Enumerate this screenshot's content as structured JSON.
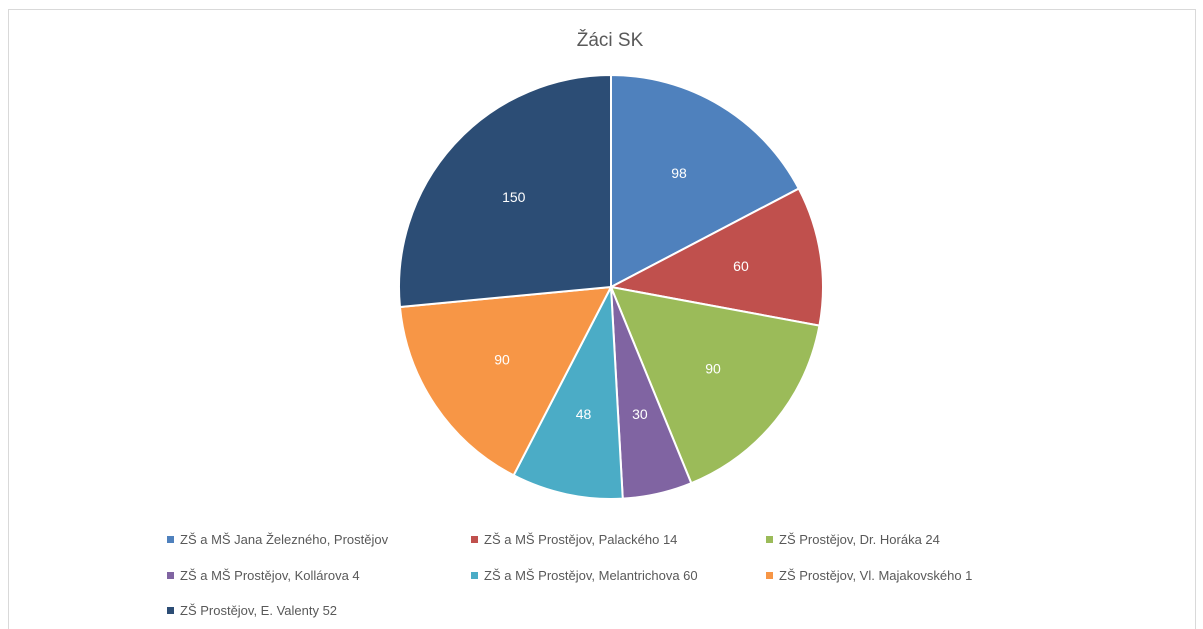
{
  "chart_data": {
    "type": "pie",
    "title": "Žáci SK",
    "categories": [
      "ZŠ a MŠ Jana Železného, Prostějov",
      "ZŠ a MŠ Prostějov, Palackého 14",
      "ZŠ Prostějov, Dr. Horáka 24",
      "ZŠ a MŠ Prostějov, Kollárova 4",
      "ZŠ a MŠ Prostějov, Melantrichova 60",
      "ZŠ Prostějov, Vl. Majakovského 1",
      "ZŠ Prostějov, E. Valenty 52"
    ],
    "values": [
      98,
      60,
      90,
      30,
      48,
      90,
      150
    ],
    "colors": [
      "#4f81bd",
      "#c0504d",
      "#9bbb59",
      "#8064a2",
      "#4bacc6",
      "#f79646",
      "#2c4d75"
    ],
    "data_labels": [
      "98",
      "60",
      "90",
      "30",
      "48",
      "90",
      "150"
    ],
    "legend_position": "bottom"
  }
}
